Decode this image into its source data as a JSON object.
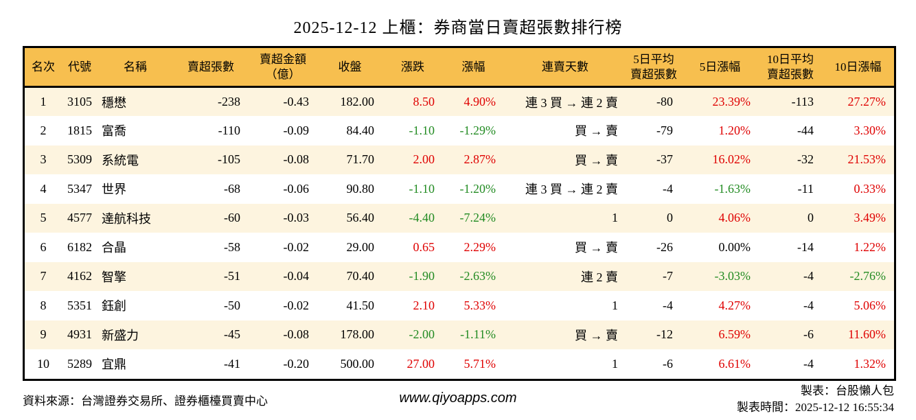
{
  "chart_data": {
    "type": "table",
    "title": "2025-12-12 上櫃：券商當日賣超張數排行榜",
    "columns": [
      "名次",
      "代號",
      "名稱",
      "賣超張數",
      "賣超金額\n（億）",
      "收盤",
      "漲跌",
      "漲幅",
      "連賣天數",
      "5日平均\n賣超張數",
      "5日漲幅",
      "10日平均\n賣超張數",
      "10日漲幅"
    ],
    "colored_columns": [
      6,
      7,
      10,
      12
    ],
    "rows": [
      [
        "1",
        "3105",
        "穩懋",
        "-238",
        "-0.43",
        "182.00",
        "8.50",
        "4.90%",
        "連 3 買 → 連 2 賣",
        "-80",
        "23.39%",
        "-113",
        "27.27%"
      ],
      [
        "2",
        "1815",
        "富喬",
        "-110",
        "-0.09",
        "84.40",
        "-1.10",
        "-1.29%",
        "買 → 賣",
        "-79",
        "1.20%",
        "-44",
        "3.30%"
      ],
      [
        "3",
        "5309",
        "系統電",
        "-105",
        "-0.08",
        "71.70",
        "2.00",
        "2.87%",
        "買 → 賣",
        "-37",
        "16.02%",
        "-32",
        "21.53%"
      ],
      [
        "4",
        "5347",
        "世界",
        "-68",
        "-0.06",
        "90.80",
        "-1.10",
        "-1.20%",
        "連 3 買 → 連 2 賣",
        "-4",
        "-1.63%",
        "-11",
        "0.33%"
      ],
      [
        "5",
        "4577",
        "達航科技",
        "-60",
        "-0.03",
        "56.40",
        "-4.40",
        "-7.24%",
        "1",
        "0",
        "4.06%",
        "0",
        "3.49%"
      ],
      [
        "6",
        "6182",
        "合晶",
        "-58",
        "-0.02",
        "29.00",
        "0.65",
        "2.29%",
        "買 → 賣",
        "-26",
        "0.00%",
        "-14",
        "1.22%"
      ],
      [
        "7",
        "4162",
        "智擎",
        "-51",
        "-0.04",
        "70.40",
        "-1.90",
        "-2.63%",
        "連 2 賣",
        "-7",
        "-3.03%",
        "-4",
        "-2.76%"
      ],
      [
        "8",
        "5351",
        "鈺創",
        "-50",
        "-0.02",
        "41.50",
        "2.10",
        "5.33%",
        "1",
        "-4",
        "4.27%",
        "-4",
        "5.06%"
      ],
      [
        "9",
        "4931",
        "新盛力",
        "-45",
        "-0.08",
        "178.00",
        "-2.00",
        "-1.11%",
        "買 → 賣",
        "-12",
        "6.59%",
        "-6",
        "11.60%"
      ],
      [
        "10",
        "5289",
        "宜鼎",
        "-41",
        "-0.20",
        "500.00",
        "27.00",
        "5.71%",
        "1",
        "-6",
        "6.61%",
        "-4",
        "1.32%"
      ]
    ]
  },
  "footer": {
    "source": "資料來源：台灣證券交易所、證券櫃檯買賣中心",
    "website": "www.qiyoapps.com",
    "author": "製表：台股懶人包",
    "generated": "製表時間：2025-12-12 16:55:34"
  },
  "colors": {
    "up": "#df0000",
    "down": "#228b22",
    "flat": "#000000",
    "header_bg": "#f7bf4f",
    "row_alt_bg": "#fdf4df",
    "row_bg": "#ffffff",
    "border": "#000000"
  }
}
